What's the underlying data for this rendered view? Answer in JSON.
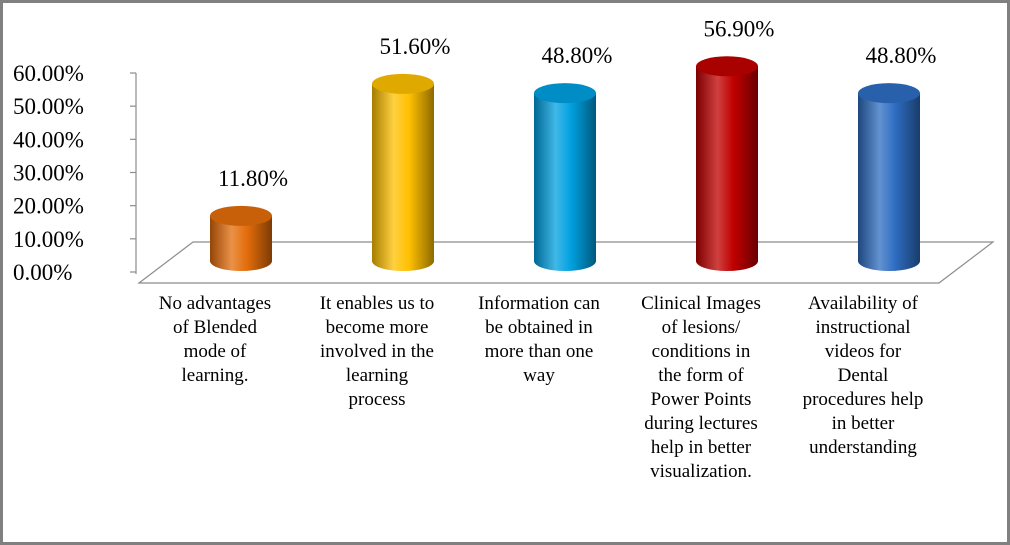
{
  "chart_data": {
    "type": "bar",
    "style": "3d-cylinder",
    "categories": [
      [
        "No advantages",
        "of Blended",
        "mode of",
        "learning."
      ],
      [
        "It enables us to",
        "become more",
        "involved in the",
        "learning",
        "process"
      ],
      [
        "Information can",
        "be obtained in",
        "more than one",
        "way"
      ],
      [
        "Clinical Images",
        "of lesions/",
        "conditions in",
        "the form of",
        "Power Points",
        "during lectures",
        "help in better",
        "visualization."
      ],
      [
        "Availability of",
        "instructional",
        "videos for",
        "Dental",
        "procedures help",
        "in better",
        "understanding"
      ]
    ],
    "values": [
      11.8,
      51.6,
      48.8,
      56.9,
      48.8
    ],
    "data_labels": [
      "11.80%",
      "51.60%",
      "48.80%",
      "56.90%",
      "48.80%"
    ],
    "colors": [
      "#E36C0A",
      "#FFC000",
      "#00A0E0",
      "#C00000",
      "#2E6DC2"
    ],
    "ylim": [
      0,
      60
    ],
    "yticks": [
      0,
      10,
      20,
      30,
      40,
      50,
      60
    ],
    "ytick_labels": [
      "0.00%",
      "10.00%",
      "20.00%",
      "30.00%",
      "40.00%",
      "50.00%",
      "60.00%"
    ],
    "title": "",
    "xlabel": "",
    "ylabel": "",
    "grid": false,
    "legend": "none"
  }
}
